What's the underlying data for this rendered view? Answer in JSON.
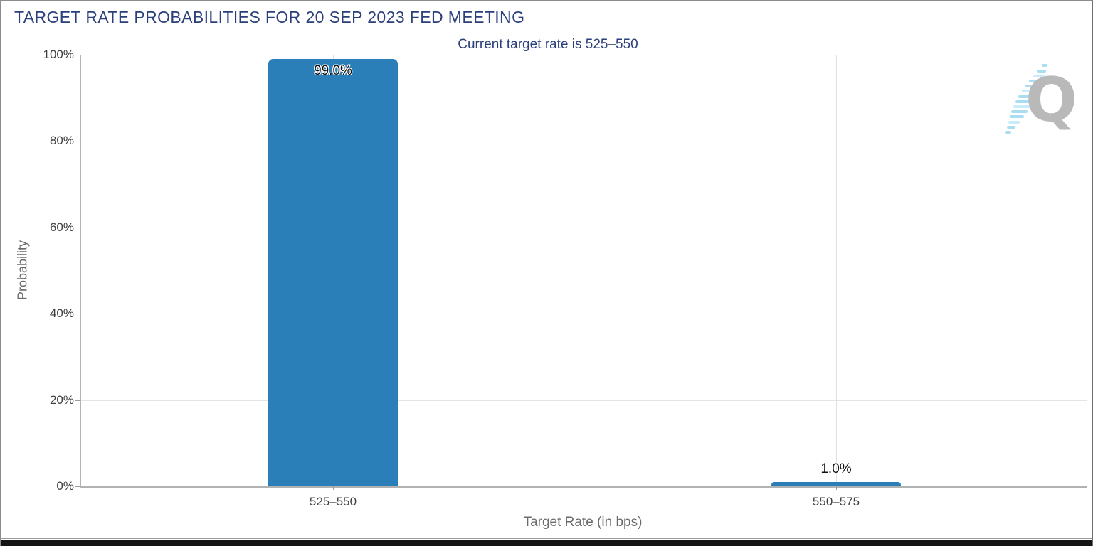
{
  "header": {
    "title": "TARGET RATE PROBABILITIES FOR 20 SEP 2023 FED MEETING",
    "subtitle": "Current target rate is 525–550"
  },
  "logo": {
    "letter": "Q"
  },
  "colors": {
    "bar": "#2a7fb8",
    "title_text": "#2a3f7b",
    "axis_text": "#3f3f3f",
    "logo_swoosh": "#a9def2",
    "logo_letter": "#b9b9b9"
  },
  "chart_data": {
    "type": "bar",
    "title": "TARGET RATE PROBABILITIES FOR 20 SEP 2023 FED MEETING",
    "subtitle": "Current target rate is 525–550",
    "categories": [
      "525–550",
      "550–575"
    ],
    "values": [
      99.0,
      1.0
    ],
    "value_labels": [
      "99.0%",
      "1.0%"
    ],
    "xlabel": "Target Rate (in bps)",
    "ylabel": "Probability",
    "ylim": [
      0,
      100
    ],
    "yticks": [
      0,
      20,
      40,
      60,
      80,
      100
    ],
    "ytick_labels": [
      "0%",
      "20%",
      "40%",
      "60%",
      "80%",
      "100%"
    ],
    "grid": true,
    "legend": "none",
    "bar_color": "#2a7fb8"
  }
}
